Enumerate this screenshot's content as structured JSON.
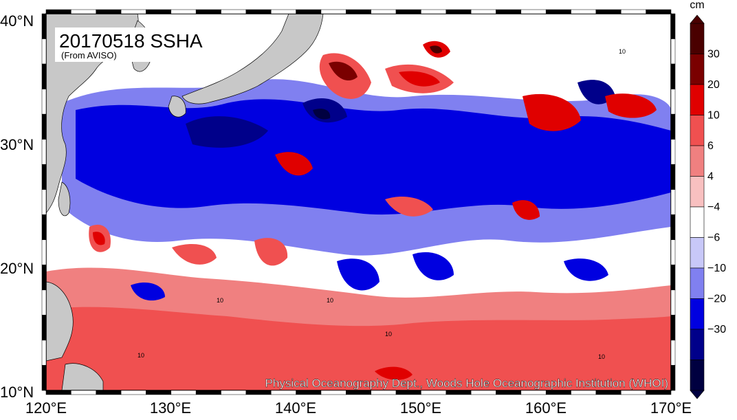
{
  "map": {
    "title": "20170518 SSHA",
    "subtitle": "(From AVISO)",
    "credit": "Physical Oceanography Dept., Woods Hole Oceanographic Institution (WHOI)",
    "lat_labels": [
      "10°N",
      "20°N",
      "30°N",
      "40°N"
    ],
    "lon_labels": [
      "120°E",
      "130°E",
      "140°E",
      "150°E",
      "160°E",
      "170°E"
    ],
    "lat_range": [
      10,
      40
    ],
    "lon_range": [
      120,
      170
    ],
    "contour_labels": [
      "10",
      "10",
      "10",
      "10",
      "10",
      "10"
    ]
  },
  "colorbar": {
    "unit": "cm",
    "labels": [
      "30",
      "20",
      "10",
      "6",
      "4",
      "−4",
      "−6",
      "−10",
      "−20",
      "−30"
    ],
    "colors": [
      "#4a0000",
      "#7a0000",
      "#e00000",
      "#f05050",
      "#f08080",
      "#f8c0c0",
      "#ffffff",
      "#c8c8f8",
      "#8080f0",
      "#0000e0",
      "#00008a",
      "#000040"
    ]
  },
  "colors": {
    "land": "#c8c8c8",
    "neutral": "#ffffff",
    "frame": "#000000"
  }
}
